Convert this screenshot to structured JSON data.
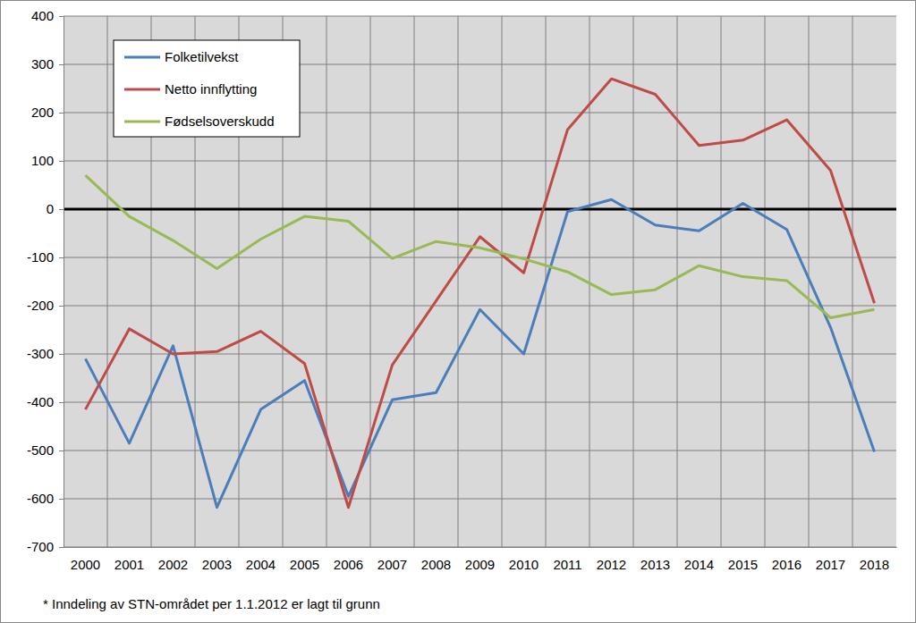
{
  "chart_data": {
    "type": "line",
    "categories": [
      "2000",
      "2001",
      "2002",
      "2003",
      "2004",
      "2005",
      "2006",
      "2007",
      "2008",
      "2009",
      "2010",
      "2011",
      "2012",
      "2013",
      "2014",
      "2015",
      "2016",
      "2017",
      "2018"
    ],
    "series": [
      {
        "name": "Folketilvekst",
        "color": "#4a7ebb",
        "values": [
          -310,
          -485,
          -283,
          -618,
          -415,
          -355,
          -595,
          -395,
          -380,
          -208,
          -300,
          -5,
          20,
          -33,
          -45,
          12,
          -42,
          -245,
          -503
        ]
      },
      {
        "name": "Netto innflytting",
        "color": "#be4b48",
        "values": [
          -415,
          -248,
          -300,
          -295,
          -253,
          -320,
          -618,
          -323,
          -190,
          -57,
          -132,
          165,
          270,
          238,
          132,
          143,
          185,
          80,
          -195
        ]
      },
      {
        "name": "Fødselsoverskudd",
        "color": "#98b954",
        "values": [
          70,
          -15,
          -65,
          -123,
          -62,
          -15,
          -25,
          -102,
          -67,
          -80,
          -103,
          -130,
          -177,
          -167,
          -117,
          -140,
          -148,
          -225,
          -208
        ]
      }
    ],
    "ylim": [
      -700,
      400
    ],
    "yticks": [
      -700,
      -600,
      -500,
      -400,
      -300,
      -200,
      -100,
      0,
      100,
      200,
      300,
      400
    ],
    "grid": true,
    "legend": "top-left",
    "annotations": [
      "* Inndeling av STN-området per 1.1.2012 er lagt til grunn"
    ]
  }
}
